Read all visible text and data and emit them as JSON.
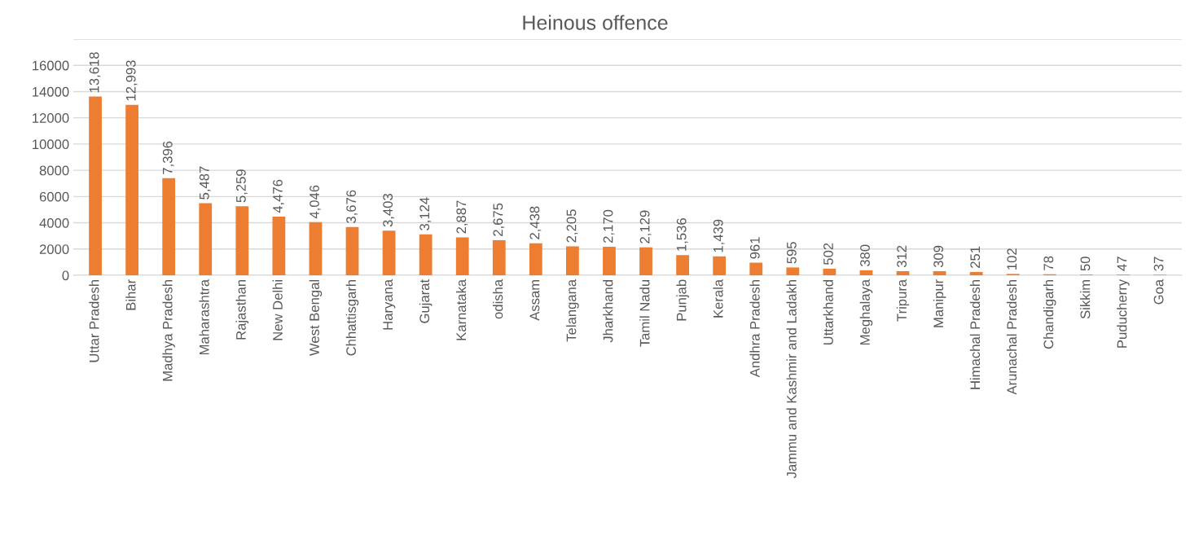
{
  "chart_data": {
    "type": "bar",
    "title": "Heinous offence",
    "categories": [
      "Uttar Pradesh",
      "Bihar",
      "Madhya Pradesh",
      "Maharashtra",
      "Rajasthan",
      "New Delhi",
      "West Bengal",
      "Chhattisgarh",
      "Haryana",
      "Gujarat",
      "Karnataka",
      "odisha",
      "Assam",
      "Telangana",
      "Jharkhand",
      "Tamil Nadu",
      "Punjab",
      "Kerala",
      "Andhra Pradesh",
      "Jammu and Kashmir and Ladakh",
      "Uttarkhand",
      "Meghalaya",
      "Tripura",
      "Manipur",
      "Himachal Pradesh",
      "Arunachal Pradesh",
      "Chandigarh",
      "Sikkim",
      "Puducherry",
      "Goa"
    ],
    "values": [
      13618,
      12993,
      7396,
      5487,
      5259,
      4476,
      4046,
      3676,
      3403,
      3124,
      2887,
      2675,
      2438,
      2205,
      2170,
      2129,
      1536,
      1439,
      961,
      595,
      502,
      380,
      312,
      309,
      251,
      102,
      78,
      50,
      47,
      37
    ],
    "value_labels": [
      "13,618",
      "12,993",
      "7,396",
      "5,487",
      "5,259",
      "4,476",
      "4,046",
      "3,676",
      "3,403",
      "3,124",
      "2,887",
      "2,675",
      "2,438",
      "2,205",
      "2,170",
      "2,129",
      "1,536",
      "1,439",
      "961",
      "595",
      "502",
      "380",
      "312",
      "309",
      "251",
      "102",
      "78",
      "50",
      "47",
      "37"
    ],
    "color": "#ed7d31",
    "ylim": [
      0,
      18000
    ],
    "yticks": [
      0,
      2000,
      4000,
      6000,
      8000,
      10000,
      12000,
      14000,
      16000,
      {
        "value": 18000,
        "label": null
      }
    ],
    "grid": "y"
  }
}
